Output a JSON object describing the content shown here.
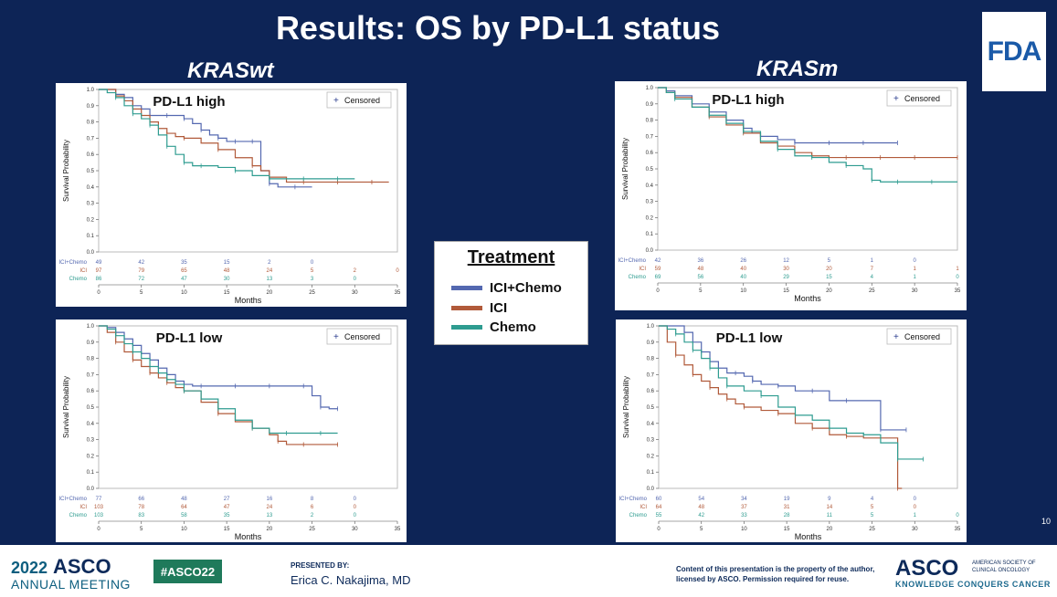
{
  "slide_title": "Results: OS by PD-L1 status",
  "subtitles": {
    "left": "KRASwt",
    "right": "KRASm"
  },
  "logo_text": "FDA",
  "page_number": "10",
  "legend": {
    "title": "Treatment",
    "items": [
      {
        "label": "ICI+Chemo",
        "color": "#5468b0"
      },
      {
        "label": "ICI",
        "color": "#b15a3a"
      },
      {
        "label": "Chemo",
        "color": "#2e9c90"
      }
    ]
  },
  "censored_label": "Censored",
  "colors": {
    "ICI+Chemo": "#5468b0",
    "ICI": "#b15a3a",
    "Chemo": "#2e9c90",
    "slide_bg": "#0d2456"
  },
  "footer": {
    "year": "2022",
    "asco": "ASCO",
    "annual_meeting": "ANNUAL MEETING",
    "hashtag": "#ASCO22",
    "presented_by": "PRESENTED BY:",
    "presenter": "Erica C. Nakajima, MD",
    "copyright": "Content of this presentation is the property of the author, licensed by ASCO. Permission required for reuse.",
    "asco_right": "ASCO",
    "society": "AMERICAN SOCIETY OF CLINICAL ONCOLOGY",
    "tagline": "KNOWLEDGE CONQUERS CANCER"
  },
  "chart_data": [
    {
      "type": "line",
      "title": "PD-L1 high",
      "group": "KRASwt",
      "xlabel": "Months",
      "ylabel": "Survival Probability",
      "xlim": [
        0,
        35
      ],
      "ylim": [
        0,
        1
      ],
      "xticks": [
        "0",
        "5",
        "10",
        "15",
        "20",
        "25",
        "30",
        "35"
      ],
      "yticks": [
        "0.0",
        "0.1",
        "0.2",
        "0.3",
        "0.4",
        "0.5",
        "0.6",
        "0.7",
        "0.8",
        "0.9",
        "1.0"
      ],
      "legend": "top-right",
      "grid": false,
      "series": [
        {
          "name": "ICI+Chemo",
          "x": [
            0,
            1,
            2,
            3,
            4,
            5,
            6,
            7,
            8,
            9,
            10,
            11,
            12,
            13,
            14,
            15,
            16,
            17,
            18,
            19,
            20,
            21,
            23,
            25
          ],
          "y": [
            1.0,
            1.0,
            0.97,
            0.95,
            0.9,
            0.88,
            0.84,
            0.84,
            0.84,
            0.84,
            0.82,
            0.79,
            0.75,
            0.72,
            0.7,
            0.68,
            0.68,
            0.68,
            0.68,
            0.5,
            0.42,
            0.4,
            0.4,
            0.4
          ],
          "at_risk": [
            "49",
            "42",
            "35",
            "15",
            "2",
            "0"
          ]
        },
        {
          "name": "ICI",
          "x": [
            0,
            1,
            2,
            3,
            4,
            5,
            6,
            7,
            8,
            9,
            10,
            12,
            14,
            16,
            18,
            19,
            20,
            22,
            24,
            26,
            28,
            30,
            32,
            34
          ],
          "y": [
            1.0,
            1.0,
            0.96,
            0.93,
            0.88,
            0.84,
            0.8,
            0.76,
            0.73,
            0.71,
            0.7,
            0.67,
            0.63,
            0.58,
            0.53,
            0.5,
            0.46,
            0.43,
            0.43,
            0.43,
            0.43,
            0.43,
            0.43,
            0.43
          ],
          "at_risk": [
            "97",
            "79",
            "65",
            "48",
            "24",
            "5",
            "2",
            "0"
          ]
        },
        {
          "name": "Chemo",
          "x": [
            0,
            1,
            2,
            3,
            4,
            5,
            6,
            7,
            8,
            9,
            10,
            11,
            12,
            14,
            16,
            18,
            20,
            22,
            24,
            26,
            28,
            30
          ],
          "y": [
            1.0,
            0.98,
            0.95,
            0.9,
            0.85,
            0.82,
            0.78,
            0.72,
            0.65,
            0.6,
            0.55,
            0.53,
            0.53,
            0.52,
            0.5,
            0.47,
            0.45,
            0.45,
            0.45,
            0.45,
            0.45,
            0.45
          ],
          "at_risk": [
            "86",
            "72",
            "47",
            "30",
            "13",
            "3",
            "0"
          ]
        }
      ]
    },
    {
      "type": "line",
      "title": "PD-L1 high",
      "group": "KRASm",
      "xlabel": "Months",
      "ylabel": "Survival Probability",
      "xlim": [
        0,
        35
      ],
      "ylim": [
        0,
        1
      ],
      "xticks": [
        "0",
        "5",
        "10",
        "15",
        "20",
        "25",
        "30",
        "35"
      ],
      "yticks": [
        "0.0",
        "0.1",
        "0.2",
        "0.3",
        "0.4",
        "0.5",
        "0.6",
        "0.7",
        "0.8",
        "0.9",
        "1.0"
      ],
      "legend": "top-right",
      "grid": false,
      "series": [
        {
          "name": "ICI+Chemo",
          "x": [
            0,
            1,
            2,
            4,
            6,
            8,
            10,
            11,
            12,
            14,
            16,
            18,
            20,
            22,
            24,
            26,
            28
          ],
          "y": [
            1.0,
            0.98,
            0.95,
            0.9,
            0.85,
            0.8,
            0.75,
            0.72,
            0.7,
            0.68,
            0.66,
            0.66,
            0.66,
            0.66,
            0.66,
            0.66,
            0.66
          ],
          "at_risk": [
            "42",
            "36",
            "26",
            "12",
            "5",
            "1",
            "0"
          ]
        },
        {
          "name": "ICI",
          "x": [
            0,
            1,
            2,
            4,
            6,
            8,
            10,
            12,
            14,
            16,
            18,
            20,
            22,
            24,
            26,
            28,
            30,
            32,
            35
          ],
          "y": [
            1.0,
            0.97,
            0.94,
            0.88,
            0.82,
            0.77,
            0.72,
            0.66,
            0.64,
            0.6,
            0.58,
            0.57,
            0.57,
            0.57,
            0.57,
            0.57,
            0.57,
            0.57,
            0.57
          ],
          "at_risk": [
            "59",
            "48",
            "40",
            "30",
            "20",
            "7",
            "1",
            "1"
          ]
        },
        {
          "name": "Chemo",
          "x": [
            0,
            1,
            2,
            4,
            6,
            8,
            10,
            12,
            14,
            16,
            18,
            20,
            22,
            24,
            25,
            26,
            28,
            30,
            32,
            35
          ],
          "y": [
            1.0,
            0.97,
            0.93,
            0.88,
            0.83,
            0.78,
            0.73,
            0.67,
            0.62,
            0.58,
            0.57,
            0.54,
            0.52,
            0.5,
            0.43,
            0.42,
            0.42,
            0.42,
            0.42,
            0.42
          ],
          "at_risk": [
            "69",
            "56",
            "40",
            "29",
            "15",
            "4",
            "1",
            "0"
          ]
        }
      ]
    },
    {
      "type": "line",
      "title": "PD-L1 low",
      "group": "KRASwt",
      "xlabel": "Months",
      "ylabel": "Survival Probability",
      "xlim": [
        0,
        35
      ],
      "ylim": [
        0,
        1
      ],
      "xticks": [
        "0",
        "5",
        "10",
        "15",
        "20",
        "25",
        "30",
        "35"
      ],
      "yticks": [
        "0.0",
        "0.1",
        "0.2",
        "0.3",
        "0.4",
        "0.5",
        "0.6",
        "0.7",
        "0.8",
        "0.9",
        "1.0"
      ],
      "legend": "top-right",
      "grid": false,
      "series": [
        {
          "name": "ICI+Chemo",
          "x": [
            0,
            1,
            2,
            3,
            4,
            5,
            6,
            7,
            8,
            9,
            10,
            11,
            12,
            14,
            16,
            18,
            20,
            22,
            24,
            25,
            26,
            27,
            28
          ],
          "y": [
            1.0,
            0.99,
            0.96,
            0.92,
            0.88,
            0.83,
            0.79,
            0.74,
            0.7,
            0.66,
            0.64,
            0.63,
            0.63,
            0.63,
            0.63,
            0.63,
            0.63,
            0.63,
            0.63,
            0.57,
            0.5,
            0.49,
            0.49
          ],
          "at_risk": [
            "77",
            "66",
            "48",
            "27",
            "16",
            "8",
            "0"
          ]
        },
        {
          "name": "ICI",
          "x": [
            0,
            1,
            2,
            3,
            4,
            5,
            6,
            7,
            8,
            9,
            10,
            12,
            14,
            16,
            18,
            20,
            21,
            22,
            24,
            26,
            28
          ],
          "y": [
            1.0,
            0.96,
            0.9,
            0.84,
            0.79,
            0.75,
            0.71,
            0.68,
            0.65,
            0.62,
            0.6,
            0.53,
            0.46,
            0.41,
            0.37,
            0.33,
            0.29,
            0.27,
            0.27,
            0.27,
            0.27
          ],
          "at_risk": [
            "103",
            "78",
            "64",
            "47",
            "24",
            "6",
            "0"
          ]
        },
        {
          "name": "Chemo",
          "x": [
            0,
            1,
            2,
            3,
            4,
            5,
            6,
            7,
            8,
            9,
            10,
            12,
            14,
            16,
            18,
            20,
            22,
            24,
            26,
            28
          ],
          "y": [
            1.0,
            0.98,
            0.94,
            0.89,
            0.84,
            0.8,
            0.75,
            0.71,
            0.67,
            0.64,
            0.6,
            0.55,
            0.49,
            0.42,
            0.37,
            0.34,
            0.34,
            0.34,
            0.34,
            0.34
          ],
          "at_risk": [
            "103",
            "83",
            "58",
            "35",
            "13",
            "2",
            "0"
          ]
        }
      ]
    },
    {
      "type": "line",
      "title": "PD-L1 low",
      "group": "KRASm",
      "xlabel": "Months",
      "ylabel": "Survival Probability",
      "xlim": [
        0,
        35
      ],
      "ylim": [
        0,
        1
      ],
      "xticks": [
        "0",
        "5",
        "10",
        "15",
        "20",
        "25",
        "30",
        "35"
      ],
      "yticks": [
        "0.0",
        "0.1",
        "0.2",
        "0.3",
        "0.4",
        "0.5",
        "0.6",
        "0.7",
        "0.8",
        "0.9",
        "1.0"
      ],
      "legend": "top-right",
      "grid": false,
      "series": [
        {
          "name": "ICI+Chemo",
          "x": [
            0,
            2,
            3,
            4,
            5,
            6,
            7,
            8,
            9,
            10,
            11,
            12,
            14,
            16,
            18,
            20,
            22,
            24,
            26,
            27,
            29
          ],
          "y": [
            1.0,
            1.0,
            0.96,
            0.9,
            0.84,
            0.78,
            0.74,
            0.71,
            0.71,
            0.69,
            0.66,
            0.64,
            0.63,
            0.6,
            0.6,
            0.54,
            0.54,
            0.54,
            0.36,
            0.36,
            0.36
          ],
          "at_risk": [
            "60",
            "54",
            "34",
            "19",
            "9",
            "4",
            "0"
          ]
        },
        {
          "name": "ICI",
          "x": [
            0,
            1,
            2,
            3,
            4,
            5,
            6,
            7,
            8,
            9,
            10,
            12,
            14,
            16,
            18,
            20,
            22,
            24,
            26,
            27,
            28,
            28.5
          ],
          "y": [
            1.0,
            0.9,
            0.82,
            0.76,
            0.7,
            0.66,
            0.62,
            0.58,
            0.55,
            0.52,
            0.5,
            0.48,
            0.46,
            0.4,
            0.37,
            0.33,
            0.32,
            0.31,
            0.31,
            0.31,
            0.0,
            0.0
          ],
          "at_risk": [
            "64",
            "48",
            "37",
            "31",
            "14",
            "5",
            "0"
          ]
        },
        {
          "name": "Chemo",
          "x": [
            0,
            1,
            2,
            3,
            4,
            5,
            6,
            7,
            8,
            10,
            12,
            14,
            16,
            18,
            20,
            22,
            24,
            26,
            28,
            30,
            31
          ],
          "y": [
            1.0,
            0.98,
            0.95,
            0.9,
            0.85,
            0.8,
            0.74,
            0.68,
            0.63,
            0.6,
            0.57,
            0.5,
            0.45,
            0.42,
            0.37,
            0.34,
            0.33,
            0.28,
            0.18,
            0.18,
            0.18
          ],
          "at_risk": [
            "55",
            "42",
            "33",
            "28",
            "11",
            "5",
            "1",
            "0"
          ]
        }
      ]
    }
  ]
}
